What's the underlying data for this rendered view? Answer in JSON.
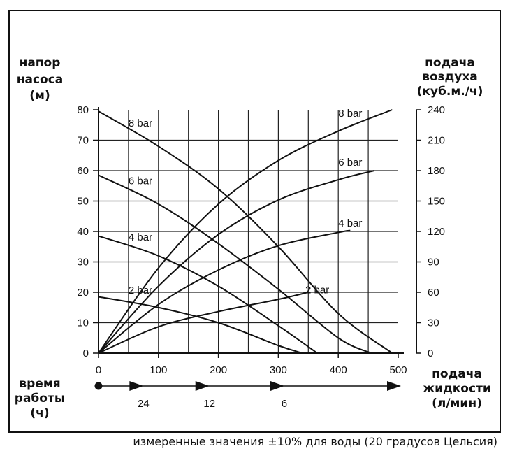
{
  "chart_data": {
    "type": "line",
    "left_axis_title": [
      "напор",
      "насоса",
      "(м)"
    ],
    "right_axis_title": [
      "подача",
      "воздуха",
      "(куб.м./ч)"
    ],
    "x_axis_title": [
      "подача",
      "жидкости",
      "(л/мин)"
    ],
    "runtime_title": [
      "время",
      "работы",
      "(ч)"
    ],
    "xlim": [
      0,
      500
    ],
    "ylim_left": [
      0,
      80
    ],
    "ylim_right": [
      0,
      240
    ],
    "x_ticks": [
      0,
      100,
      200,
      300,
      400,
      500
    ],
    "y_ticks_left": [
      0,
      10,
      20,
      30,
      40,
      50,
      60,
      70,
      80
    ],
    "y_ticks_right": [
      0,
      30,
      60,
      90,
      120,
      150,
      180,
      210,
      240
    ],
    "grid": true,
    "head_series": [
      {
        "name": "8 bar",
        "label_at": [
          50,
          74.5
        ],
        "points": [
          [
            0,
            79.5
          ],
          [
            100,
            68
          ],
          [
            200,
            54
          ],
          [
            300,
            35
          ],
          [
            400,
            13
          ],
          [
            490,
            0
          ]
        ]
      },
      {
        "name": "6 bar",
        "label_at": [
          50,
          55.5
        ],
        "points": [
          [
            0,
            58.5
          ],
          [
            100,
            49
          ],
          [
            200,
            36
          ],
          [
            300,
            21
          ],
          [
            400,
            5
          ],
          [
            455,
            0
          ]
        ]
      },
      {
        "name": "4 bar",
        "label_at": [
          50,
          37
        ],
        "points": [
          [
            0,
            38.5
          ],
          [
            100,
            32
          ],
          [
            200,
            22
          ],
          [
            300,
            9
          ],
          [
            365,
            0
          ]
        ]
      },
      {
        "name": "2 bar",
        "label_at": [
          50,
          19.5
        ],
        "points": [
          [
            0,
            18.5
          ],
          [
            100,
            15
          ],
          [
            200,
            10
          ],
          [
            300,
            2.5
          ],
          [
            340,
            0
          ]
        ]
      }
    ],
    "air_series": [
      {
        "name": "8 bar",
        "label_at": [
          400,
          233
        ],
        "points": [
          [
            0,
            0
          ],
          [
            100,
            84
          ],
          [
            200,
            147
          ],
          [
            300,
            190
          ],
          [
            400,
            219
          ],
          [
            490,
            240
          ]
        ]
      },
      {
        "name": "6 bar",
        "label_at": [
          400,
          185
        ],
        "points": [
          [
            0,
            0
          ],
          [
            100,
            66
          ],
          [
            200,
            117
          ],
          [
            300,
            151
          ],
          [
            400,
            171
          ],
          [
            460,
            180
          ]
        ]
      },
      {
        "name": "4 bar",
        "label_at": [
          400,
          125
        ],
        "points": [
          [
            0,
            0
          ],
          [
            100,
            48
          ],
          [
            200,
            82
          ],
          [
            300,
            106
          ],
          [
            400,
            119
          ],
          [
            420,
            121
          ]
        ]
      },
      {
        "name": "2 bar",
        "label_at": [
          345,
          59
        ],
        "points": [
          [
            0,
            0
          ],
          [
            100,
            26
          ],
          [
            200,
            41
          ],
          [
            300,
            53
          ],
          [
            350,
            60
          ]
        ]
      }
    ],
    "runtime_markers": [
      {
        "label": "24",
        "x": 75
      },
      {
        "label": "12",
        "x": 185
      },
      {
        "label": "6",
        "x": 310
      }
    ]
  },
  "footnote": "измеренные значения ±10% для воды (20 градусов Цельсия)"
}
